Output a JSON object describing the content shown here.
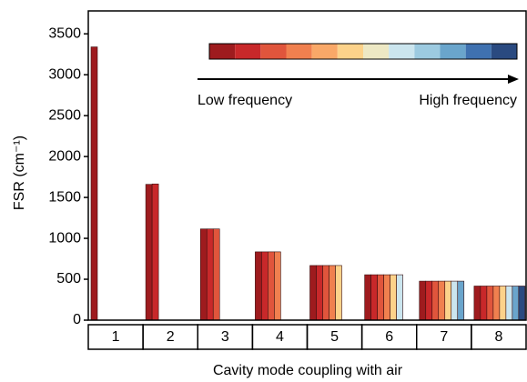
{
  "chart_data": {
    "type": "bar",
    "xlabel": "Cavity mode coupling with air",
    "ylabel": "FSR (cm⁻¹)",
    "categories": [
      "1",
      "2",
      "3",
      "4",
      "5",
      "6",
      "7",
      "8"
    ],
    "series": [
      {
        "color": "#9e1b1e",
        "values": [
          3340,
          1660,
          1115,
          835,
          668,
          555,
          477,
          417
        ]
      },
      {
        "color": "#c8282a",
        "values": [
          null,
          1665,
          1115,
          835,
          668,
          555,
          477,
          417
        ]
      },
      {
        "color": "#e0553c",
        "values": [
          null,
          null,
          1115,
          835,
          668,
          555,
          477,
          417
        ]
      },
      {
        "color": "#f0804f",
        "values": [
          null,
          null,
          null,
          835,
          668,
          555,
          477,
          417
        ]
      },
      {
        "color": "#fcd28a",
        "values": [
          null,
          null,
          null,
          null,
          668,
          555,
          477,
          417
        ]
      },
      {
        "color": "#cbe5ee",
        "values": [
          null,
          null,
          null,
          null,
          null,
          555,
          477,
          417
        ]
      },
      {
        "color": "#6aa5cc",
        "values": [
          null,
          null,
          null,
          null,
          null,
          null,
          477,
          417
        ]
      },
      {
        "color": "#2a4a80",
        "values": [
          null,
          null,
          null,
          null,
          null,
          null,
          null,
          417
        ]
      }
    ],
    "ylim": [
      0,
      3780
    ],
    "yticks": [
      0,
      500,
      1000,
      1500,
      2000,
      2500,
      3000,
      3500
    ],
    "colorbar": [
      "#9e1b1e",
      "#c8282a",
      "#e0553c",
      "#f0804f",
      "#f9a868",
      "#fcd28a",
      "#ede8c4",
      "#cbe5ee",
      "#9ccae0",
      "#6aa5cc",
      "#3f71b0",
      "#2a4a80"
    ],
    "colorbar_low": "Low frequency",
    "colorbar_high": "High frequency"
  }
}
